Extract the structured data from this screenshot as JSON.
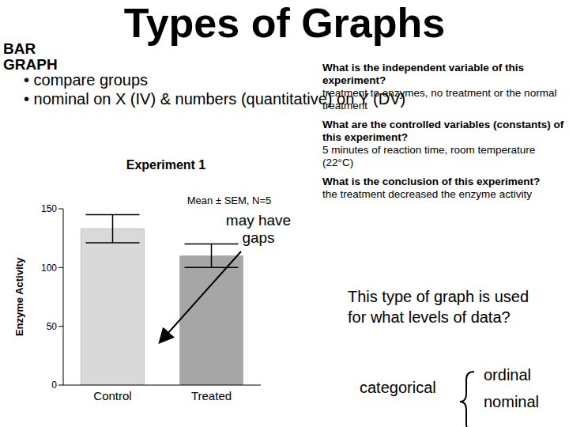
{
  "slide": {
    "title": "Types of Graphs",
    "label": "BAR GRAPH",
    "bullets": [
      "• compare groups",
      "• nominal on X (IV) & numbers (quantitative) on Y (DV)"
    ],
    "qa": [
      {
        "q": "What is the independent variable of this experiment?",
        "a": "treatment to enzymes, no treatment or the normal treatment"
      },
      {
        "q": "What are the controlled variables (constants) of this experiment?",
        "a": "5 minutes of reaction time, room temperature (22°C)"
      },
      {
        "q": "What is the conclusion of this experiment?",
        "a": "the treatment decreased the enzyme activity"
      }
    ],
    "question": "This type of graph is used for what levels of data?",
    "answer": "categorical",
    "levels": [
      "ordinal",
      "nominal"
    ]
  },
  "chart_data": {
    "type": "bar",
    "title": "Experiment 1",
    "subtitle": "Mean ± SEM, N=5",
    "y_label": "Enzyme Activity",
    "categories": [
      "Control",
      "Treated"
    ],
    "values": [
      133,
      110
    ],
    "errors": [
      12,
      10
    ],
    "colors": [
      "#d9d9d9",
      "#a6a6a6"
    ],
    "ylim": [
      0,
      150
    ],
    "yticks": [
      0,
      50,
      100,
      150
    ],
    "grid": false,
    "annotations": [
      "may have gaps"
    ]
  }
}
